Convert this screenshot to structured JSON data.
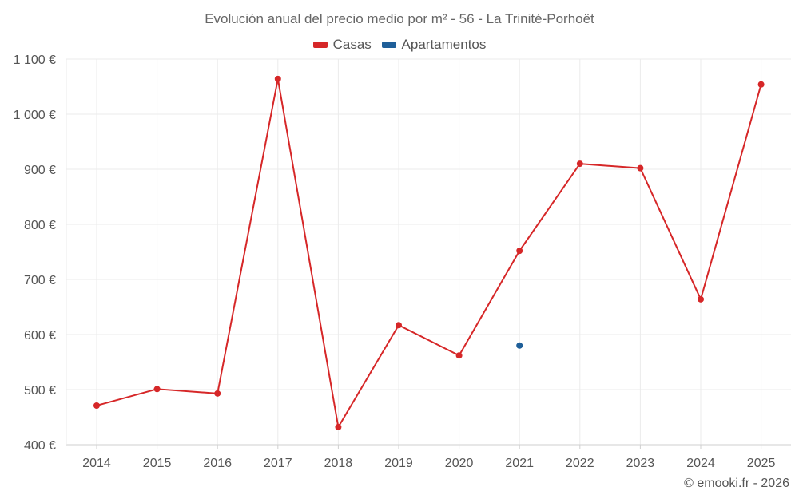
{
  "chart_data": {
    "type": "line",
    "title": "Evolución anual del precio medio por m² - 56 - La Trinité-Porhoët",
    "categories": [
      "2014",
      "2015",
      "2016",
      "2017",
      "2018",
      "2019",
      "2020",
      "2021",
      "2022",
      "2023",
      "2024",
      "2025"
    ],
    "series": [
      {
        "name": "Casas",
        "color": "#d62728",
        "values": [
          471,
          501,
          493,
          1064,
          432,
          617,
          562,
          752,
          910,
          902,
          664,
          1054
        ]
      },
      {
        "name": "Apartamentos",
        "color": "#1f5f99",
        "values": [
          null,
          null,
          null,
          null,
          null,
          null,
          null,
          580,
          null,
          null,
          null,
          null
        ]
      }
    ],
    "ylim": [
      400,
      1100
    ],
    "yticks": [
      400,
      500,
      600,
      700,
      800,
      900,
      1000,
      1100
    ],
    "ytick_labels": [
      "400 €",
      "500 €",
      "600 €",
      "700 €",
      "800 €",
      "900 €",
      "1 000 €",
      "1 100 €"
    ],
    "xlabel": "",
    "ylabel": "",
    "grid": true,
    "legend_position": "top-center"
  },
  "legend": [
    {
      "label": "Casas",
      "color": "#d62728"
    },
    {
      "label": "Apartamentos",
      "color": "#1f5f99"
    }
  ],
  "credit": "© emooki.fr - 2026"
}
